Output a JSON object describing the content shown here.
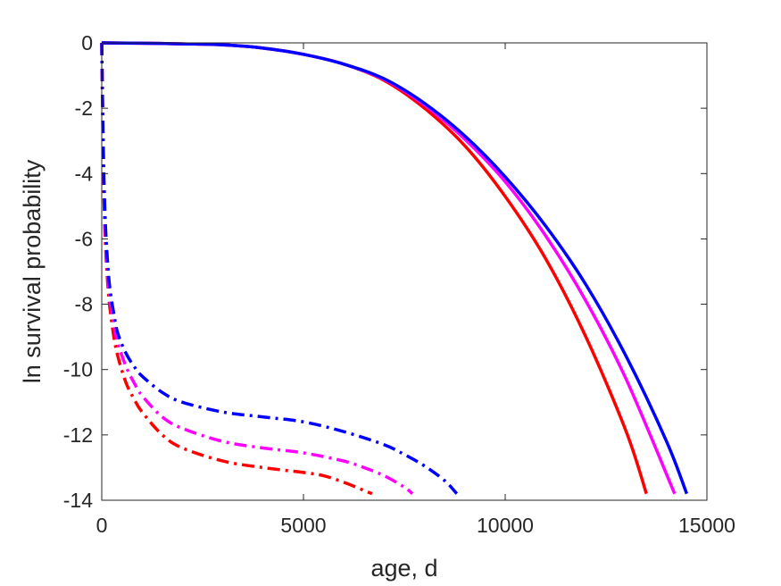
{
  "chart_data": {
    "type": "line",
    "title": "",
    "xlabel": "age, d",
    "ylabel": "ln survival probability",
    "xlim": [
      0,
      15000
    ],
    "ylim": [
      -14,
      0
    ],
    "xticks": [
      0,
      5000,
      10000,
      15000
    ],
    "yticks": [
      0,
      -2,
      -4,
      -6,
      -8,
      -10,
      -12,
      -14
    ],
    "x_tick_labels": [
      "0",
      "5000",
      "10000",
      "15000"
    ],
    "y_tick_labels": [
      "0",
      "-2",
      "-4",
      "-6",
      "-8",
      "-10",
      "-12",
      "-14"
    ],
    "grid": false,
    "legend": "none",
    "series": [
      {
        "color": "#ff0000",
        "style": "solid",
        "x": [
          0,
          1000,
          2000,
          3000,
          4000,
          5000,
          6000,
          7000,
          8000,
          9000,
          10000,
          11000,
          12000,
          13000,
          13500
        ],
        "y": [
          0,
          -0.01,
          -0.03,
          -0.06,
          -0.16,
          -0.35,
          -0.65,
          -1.15,
          -2.0,
          -3.15,
          -4.7,
          -6.6,
          -9.0,
          -11.9,
          -13.8
        ]
      },
      {
        "color": "#ff00ff",
        "style": "solid",
        "x": [
          0,
          1000,
          2000,
          3000,
          4000,
          5000,
          6000,
          7000,
          8000,
          9000,
          10000,
          11000,
          12000,
          13000,
          14200
        ],
        "y": [
          0,
          -0.01,
          -0.03,
          -0.06,
          -0.16,
          -0.35,
          -0.65,
          -1.12,
          -1.9,
          -2.95,
          -4.25,
          -5.9,
          -7.9,
          -10.3,
          -13.8
        ]
      },
      {
        "color": "#0000ff",
        "style": "solid",
        "x": [
          0,
          1000,
          2000,
          3000,
          4000,
          5000,
          6000,
          7000,
          8000,
          9000,
          10000,
          11000,
          12000,
          13000,
          14000,
          14500
        ],
        "y": [
          0,
          -0.01,
          -0.03,
          -0.06,
          -0.16,
          -0.35,
          -0.65,
          -1.1,
          -1.85,
          -2.85,
          -4.1,
          -5.6,
          -7.4,
          -9.6,
          -12.2,
          -13.8
        ]
      },
      {
        "color": "#ff0000",
        "style": "dashdot",
        "x": [
          0,
          30,
          60,
          100,
          150,
          200,
          300,
          400,
          600,
          800,
          1000,
          1500,
          2000,
          3000,
          4000,
          5000,
          5500,
          6000,
          6500,
          6700
        ],
        "y": [
          0,
          -3.0,
          -5.0,
          -6.4,
          -7.4,
          -8.1,
          -9.0,
          -9.6,
          -10.4,
          -10.9,
          -11.3,
          -12.0,
          -12.4,
          -12.8,
          -13.0,
          -13.15,
          -13.25,
          -13.45,
          -13.7,
          -13.8
        ]
      },
      {
        "color": "#ff00ff",
        "style": "dashdot",
        "x": [
          0,
          30,
          60,
          100,
          150,
          200,
          300,
          400,
          600,
          800,
          1000,
          1500,
          2000,
          3000,
          4000,
          5000,
          6000,
          6500,
          7000,
          7500,
          7700
        ],
        "y": [
          0,
          -2.8,
          -4.7,
          -6.1,
          -7.1,
          -7.8,
          -8.6,
          -9.2,
          -9.9,
          -10.4,
          -10.8,
          -11.45,
          -11.8,
          -12.2,
          -12.4,
          -12.55,
          -12.8,
          -13.0,
          -13.25,
          -13.6,
          -13.8
        ]
      },
      {
        "color": "#0000ff",
        "style": "dashdot",
        "x": [
          0,
          30,
          60,
          100,
          150,
          200,
          300,
          400,
          600,
          800,
          1000,
          1500,
          2000,
          3000,
          4000,
          5000,
          6000,
          7000,
          7500,
          8000,
          8500,
          8800
        ],
        "y": [
          0,
          -2.6,
          -4.4,
          -5.8,
          -6.8,
          -7.5,
          -8.3,
          -8.9,
          -9.5,
          -9.9,
          -10.2,
          -10.7,
          -11.0,
          -11.3,
          -11.45,
          -11.6,
          -11.9,
          -12.3,
          -12.6,
          -12.95,
          -13.4,
          -13.8
        ]
      }
    ]
  }
}
